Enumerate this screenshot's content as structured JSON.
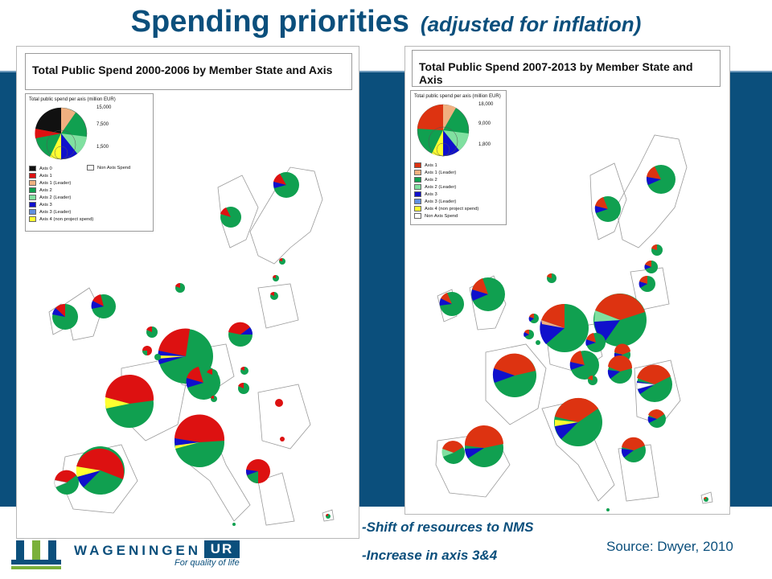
{
  "slide": {
    "title_main": "Spending priorities",
    "title_sub": "(adjusted for inflation)",
    "bullets": [
      "-Shift of resources to NMS",
      "-Increase in axis 3&4"
    ],
    "source": "Source: Dwyer, 2010",
    "logo": {
      "name": "WAGENINGEN",
      "suffix": "UR",
      "tagline": "For quality of life"
    }
  },
  "colors": {
    "axis0": "#111111",
    "axis1": "#dd1111",
    "axis1_leader": "#f0b080",
    "axis2": "#10a050",
    "axis2_leader": "#80e0a0",
    "axis3": "#1010cc",
    "axis3_leader": "#6090e0",
    "axis4": "#ffff30",
    "non_axis": "#ffffff",
    "brand_blue": "#0b4f7c"
  },
  "maps": [
    {
      "title": "Total Public Spend 2000-2006 by Member State and Axis",
      "legend_title": "Total public spend per axis (million EUR)",
      "scale": [
        "15,000",
        "7,500",
        "1,500"
      ],
      "items": [
        "Axis 0",
        "Axis 1",
        "Axis 1 (Leader)",
        "Axis 2",
        "Axis 2 (Leader)",
        "Axis 3",
        "Axis 3 (Leader)",
        "Axis 4 (non project spend)"
      ],
      "item_colors": [
        "axis0",
        "axis1",
        "axis1_leader",
        "axis2",
        "axis2_leader",
        "axis3",
        "axis3_leader",
        "axis4"
      ],
      "extra_item": "Non Axis Spend"
    },
    {
      "title": "Total Public Spend 2007-2013 by Member State and Axis",
      "legend_title": "Total public spend per axis (million EUR)",
      "scale": [
        "18,000",
        "9,000",
        "1,800"
      ],
      "items": [
        "Axis 1",
        "Axis 1 (Leader)",
        "Axis 2",
        "Axis 2 (Leader)",
        "Axis 3",
        "Axis 3 (Leader)",
        "Axis 4 (non project spend)",
        "Non Axis Spend"
      ],
      "item_colors": [
        "axis1",
        "axis1_leader",
        "axis2",
        "axis2_leader",
        "axis3",
        "axis3_leader",
        "axis4",
        "non_axis"
      ]
    }
  ]
}
